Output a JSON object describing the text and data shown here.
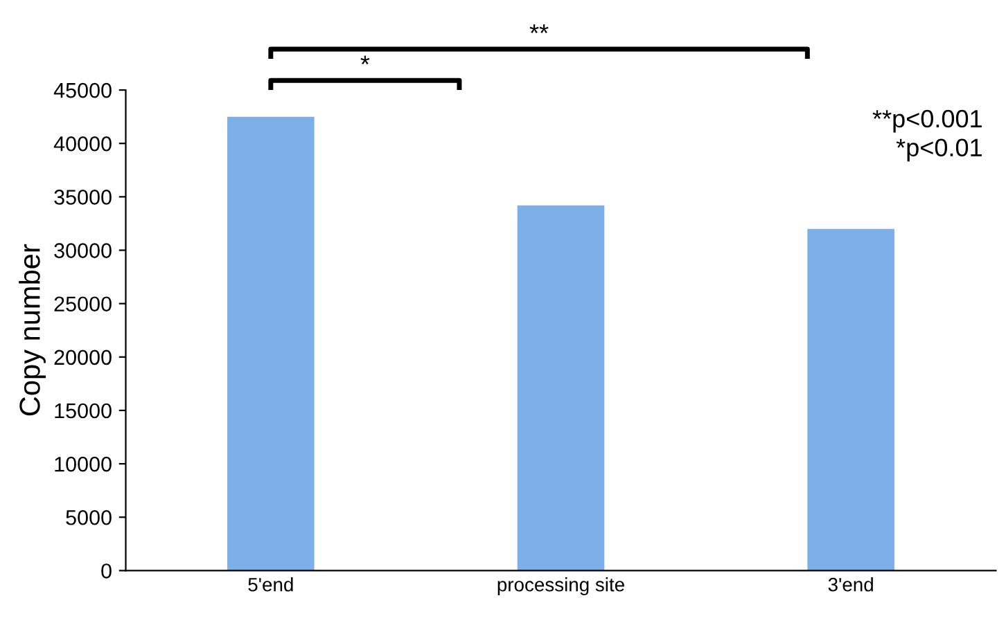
{
  "chart_data": {
    "type": "bar",
    "ylabel": "Copy number",
    "categories": [
      "5'end",
      "processing site",
      "3'end"
    ],
    "values": [
      42500,
      34200,
      32000
    ],
    "color": "#7db0e8",
    "ylim": [
      0,
      45000
    ],
    "yticks": [
      0,
      5000,
      10000,
      15000,
      20000,
      25000,
      30000,
      35000,
      40000,
      45000
    ],
    "grid": false,
    "annotations": [
      "*",
      "**",
      "**p<0.001",
      "*p<0.01"
    ]
  }
}
